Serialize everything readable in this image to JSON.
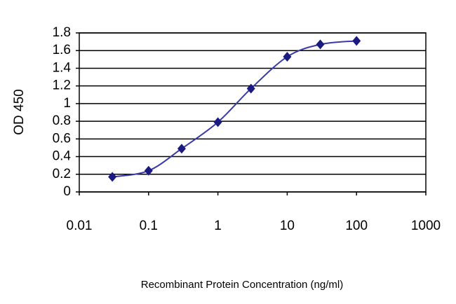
{
  "chart_data": {
    "type": "line",
    "xlabel": "Recombinant Protein Concentration (ng/ml)",
    "ylabel": "OD 450",
    "x": [
      0.03,
      0.1,
      0.3,
      1,
      3,
      10,
      30,
      100
    ],
    "values": [
      0.17,
      0.24,
      0.49,
      0.79,
      1.17,
      1.53,
      1.67,
      1.71
    ],
    "color": "#3a3aa8",
    "marker_color": "#1a1a80",
    "xscale": "log",
    "xlim": [
      0.01,
      1000
    ],
    "xticks": [
      0.01,
      0.1,
      1,
      10,
      100,
      1000
    ],
    "ylim": [
      0,
      1.8
    ],
    "yticks": [
      0,
      0.2,
      0.4,
      0.6,
      0.8,
      1,
      1.2,
      1.4,
      1.6,
      1.8
    ],
    "grid": true
  }
}
